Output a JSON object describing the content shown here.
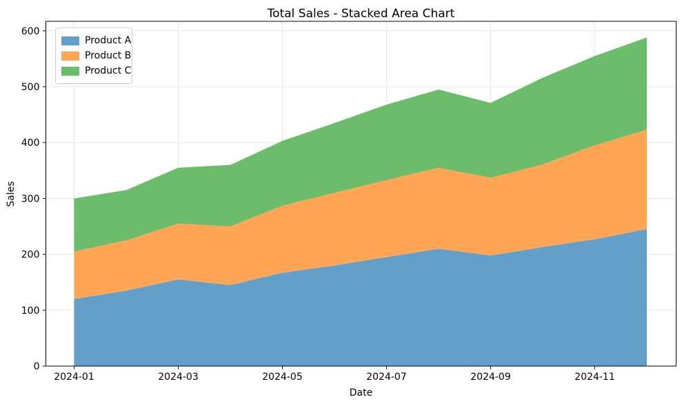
{
  "chart_data": {
    "type": "area",
    "stacked": true,
    "title": "Total Sales - Stacked Area Chart",
    "xlabel": "Date",
    "ylabel": "Sales",
    "x": [
      "2024-01",
      "2024-02",
      "2024-03",
      "2024-04",
      "2024-05",
      "2024-06",
      "2024-07",
      "2024-08",
      "2024-09",
      "2024-10",
      "2024-11",
      "2024-12"
    ],
    "series": [
      {
        "name": "Product A",
        "color": "#62a0ca",
        "values": [
          120,
          135,
          155,
          145,
          167,
          180,
          195,
          210,
          198,
          213,
          227,
          245
        ]
      },
      {
        "name": "Product B",
        "color": "#ffa556",
        "values": [
          85,
          90,
          100,
          105,
          120,
          130,
          138,
          145,
          139,
          148,
          168,
          178
        ]
      },
      {
        "name": "Product C",
        "color": "#6bbc6b",
        "values": [
          95,
          90,
          100,
          110,
          116,
          125,
          135,
          140,
          134,
          155,
          160,
          165
        ]
      }
    ],
    "stacked_totals": [
      300,
      315,
      355,
      360,
      403,
      435,
      468,
      495,
      471,
      516,
      555,
      588
    ],
    "ylim": [
      0,
      617
    ],
    "yticks": [
      0,
      100,
      200,
      300,
      400,
      500,
      600
    ],
    "x_tick_indices": [
      0,
      2,
      4,
      6,
      8,
      10
    ],
    "x_tick_labels": [
      "2024-01",
      "2024-03",
      "2024-05",
      "2024-07",
      "2024-09",
      "2024-11"
    ],
    "grid": true,
    "legend_position": "upper left",
    "colors": {
      "grid": "#e7e7e7",
      "spine": "#000000",
      "text": "#000000",
      "legend_border": "#cccccc"
    }
  }
}
